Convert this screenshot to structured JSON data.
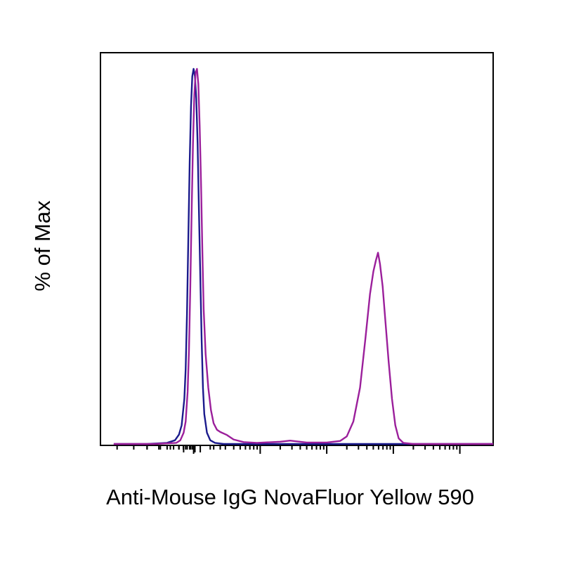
{
  "chart_data": {
    "type": "line",
    "title": "",
    "xlabel": "Anti-Mouse IgG NovaFluor Yellow 590",
    "ylabel": "% of Max",
    "x_scale": "biexponential",
    "x_tick_labels": [],
    "y_tick_labels": [],
    "ylim": [
      0,
      100
    ],
    "grid": false,
    "legend": "none",
    "series": [
      {
        "color": "#1a1a8c",
        "points": [
          [
            -0.2,
            0
          ],
          [
            0.3,
            0
          ],
          [
            0.6,
            0.3
          ],
          [
            0.72,
            1
          ],
          [
            0.78,
            2.5
          ],
          [
            0.82,
            5
          ],
          [
            0.86,
            12
          ],
          [
            0.88,
            20
          ],
          [
            0.9,
            35
          ],
          [
            0.92,
            55
          ],
          [
            0.94,
            75
          ],
          [
            0.96,
            90
          ],
          [
            0.98,
            98
          ],
          [
            1.0,
            100
          ],
          [
            1.02,
            98
          ],
          [
            1.04,
            92
          ],
          [
            1.06,
            80
          ],
          [
            1.08,
            62
          ],
          [
            1.1,
            45
          ],
          [
            1.12,
            28
          ],
          [
            1.14,
            15
          ],
          [
            1.16,
            8
          ],
          [
            1.2,
            3
          ],
          [
            1.25,
            1
          ],
          [
            1.32,
            0.3
          ],
          [
            1.45,
            0
          ],
          [
            5.5,
            0
          ]
        ]
      },
      {
        "color": "#9b1f9b",
        "points": [
          [
            -0.2,
            0
          ],
          [
            0.4,
            0
          ],
          [
            0.74,
            0.3
          ],
          [
            0.8,
            1
          ],
          [
            0.85,
            3
          ],
          [
            0.88,
            6
          ],
          [
            0.91,
            14
          ],
          [
            0.93,
            25
          ],
          [
            0.95,
            42
          ],
          [
            0.97,
            62
          ],
          [
            0.99,
            80
          ],
          [
            1.01,
            93
          ],
          [
            1.03,
            99
          ],
          [
            1.05,
            100
          ],
          [
            1.07,
            96
          ],
          [
            1.09,
            85
          ],
          [
            1.11,
            70
          ],
          [
            1.13,
            52
          ],
          [
            1.15,
            36
          ],
          [
            1.18,
            24
          ],
          [
            1.22,
            15
          ],
          [
            1.26,
            9
          ],
          [
            1.3,
            5.5
          ],
          [
            1.35,
            3.8
          ],
          [
            1.4,
            3.2
          ],
          [
            1.5,
            2.4
          ],
          [
            1.6,
            1.2
          ],
          [
            1.75,
            0.5
          ],
          [
            1.95,
            0.3
          ],
          [
            2.3,
            0.6
          ],
          [
            2.45,
            0.9
          ],
          [
            2.55,
            0.7
          ],
          [
            2.7,
            0.4
          ],
          [
            3.0,
            0.4
          ],
          [
            3.2,
            0.8
          ],
          [
            3.3,
            2
          ],
          [
            3.4,
            6
          ],
          [
            3.5,
            15
          ],
          [
            3.58,
            28
          ],
          [
            3.65,
            40
          ],
          [
            3.7,
            46
          ],
          [
            3.74,
            49
          ],
          [
            3.77,
            51
          ],
          [
            3.8,
            48
          ],
          [
            3.84,
            42
          ],
          [
            3.88,
            33
          ],
          [
            3.93,
            22
          ],
          [
            3.98,
            12
          ],
          [
            4.03,
            5
          ],
          [
            4.08,
            1.5
          ],
          [
            4.15,
            0.3
          ],
          [
            4.3,
            0
          ],
          [
            5.5,
            0
          ]
        ]
      }
    ]
  }
}
